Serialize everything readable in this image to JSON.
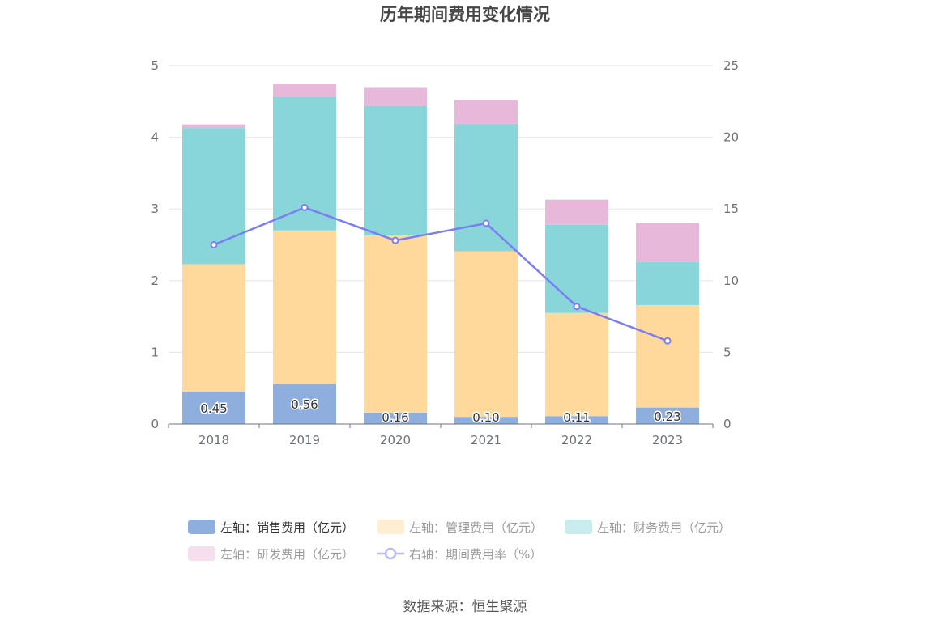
{
  "chart_data": {
    "type": "bar",
    "title": "历年期间费用变化情况",
    "categories": [
      "2018",
      "2019",
      "2020",
      "2021",
      "2022",
      "2023"
    ],
    "left_axis": {
      "range": [
        0,
        5
      ],
      "ticks": [
        "0",
        "1",
        "2",
        "3",
        "4",
        "5"
      ]
    },
    "right_axis": {
      "range": [
        0,
        25
      ],
      "ticks": [
        "0",
        "5",
        "10",
        "15",
        "20",
        "25"
      ]
    },
    "series": [
      {
        "name": "左轴：销售费用（亿元）",
        "axis": "left",
        "kind": "bar-stack",
        "color": "#8eaedd",
        "values": [
          0.45,
          0.56,
          0.16,
          0.1,
          0.11,
          0.23
        ],
        "labels": [
          "0.45",
          "0.56",
          "0.16",
          "0.10",
          "0.11",
          "0.23"
        ]
      },
      {
        "name": "左轴：管理费用（亿元）",
        "axis": "left",
        "kind": "bar-stack",
        "color": "#ffd99b",
        "values": [
          1.78,
          2.14,
          2.47,
          2.31,
          1.44,
          1.43
        ]
      },
      {
        "name": "左轴：财务费用（亿元）",
        "axis": "left",
        "kind": "bar-stack",
        "color": "#88d6da",
        "values": [
          1.9,
          1.86,
          1.81,
          1.78,
          1.23,
          0.6
        ]
      },
      {
        "name": "左轴：研发费用（亿元）",
        "axis": "left",
        "kind": "bar-stack",
        "color": "#e8b8da",
        "values": [
          0.05,
          0.18,
          0.25,
          0.33,
          0.35,
          0.55
        ]
      },
      {
        "name": "右轴：期间费用率（%）",
        "axis": "right",
        "kind": "line",
        "color": "#7b7ef0",
        "values": [
          12.5,
          15.1,
          12.8,
          14.0,
          8.2,
          5.8
        ]
      }
    ],
    "legend_position": "bottom",
    "grid": true
  },
  "source_text": "数据来源：恒生聚源"
}
